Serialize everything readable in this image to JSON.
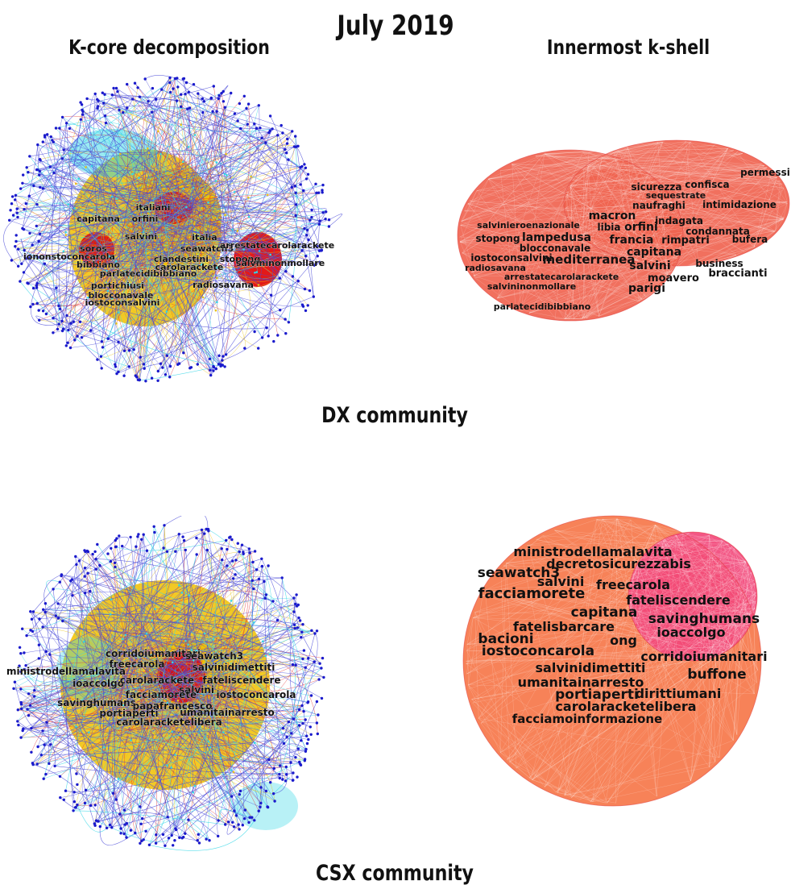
{
  "title": "July 2019",
  "columns": {
    "left": "K-core decomposition",
    "right": "Innermost k-shell"
  },
  "colors": {
    "node": "#1a1acc",
    "edge_blue": "#4a4ad8",
    "edge_red": "#e23030",
    "edge_yellow": "#e8c21a",
    "edge_cyan": "#33d6e6",
    "core_red": "#e00000",
    "core_yellow": "#f0c000",
    "shell_dx": "#f06450",
    "shell_csx_a": "#f6774a",
    "shell_csx_b": "#f2487a"
  },
  "communities": [
    {
      "label": "DX community",
      "kcore_labels": [
        "italiani",
        "capitana",
        "orfini",
        "salvini",
        "italia",
        "soros",
        "seawatch3",
        "arrestatecarolarackete",
        "iononstoconcarola",
        "clandestini",
        "stopong",
        "bibbiano",
        "carolarackete",
        "salvininonmollare",
        "parlatecidibibbiano",
        "portichiusi",
        "radiosavana",
        "blocconavale",
        "iostoconsalvini"
      ],
      "shell_labels": [
        "permessi",
        "sicurezza",
        "confisca",
        "sequestrate",
        "naufraghi",
        "intimidazione",
        "macron",
        "salvinieroenazionale",
        "libia",
        "orfini",
        "indagata",
        "condannata",
        "stopong",
        "lampedusa",
        "francia",
        "rimpatri",
        "bufera",
        "blocconavale",
        "iostoconsalvini",
        "mediterranea",
        "capitana",
        "business",
        "radiosavana",
        "braccianti",
        "salvini",
        "arrestatecarolarackete",
        "moavero",
        "salvininonmollare",
        "parigi",
        "parlatecidibibbiano"
      ]
    },
    {
      "label": "CSX community",
      "kcore_labels": [
        "corridoiumanitari",
        "seawatch3",
        "ministrodellamalavita",
        "freecarola",
        "salvinidimettiti",
        "ioaccolgo",
        "carolarackete",
        "fateliscendere",
        "salvini",
        "facciamorete",
        "iostoconcarola",
        "savinghumans",
        "papafrancesco",
        "portiaperti",
        "umanitainarresto",
        "carolaracketelibera"
      ],
      "shell_labels": [
        "ministrodellamalavita",
        "decretosicurezzabis",
        "seawatch3",
        "salvini",
        "freecarola",
        "facciamorete",
        "fateliscendere",
        "capitana",
        "savinghumans",
        "fatelisbarcare",
        "ioaccolgo",
        "bacioni",
        "ong",
        "iostoconcarola",
        "corridoiumanitari",
        "salvinidimettiti",
        "buffone",
        "umanitainarresto",
        "portiaperti",
        "dirittiumani",
        "carolaracketelibera",
        "facciamoinformazione"
      ]
    }
  ]
}
